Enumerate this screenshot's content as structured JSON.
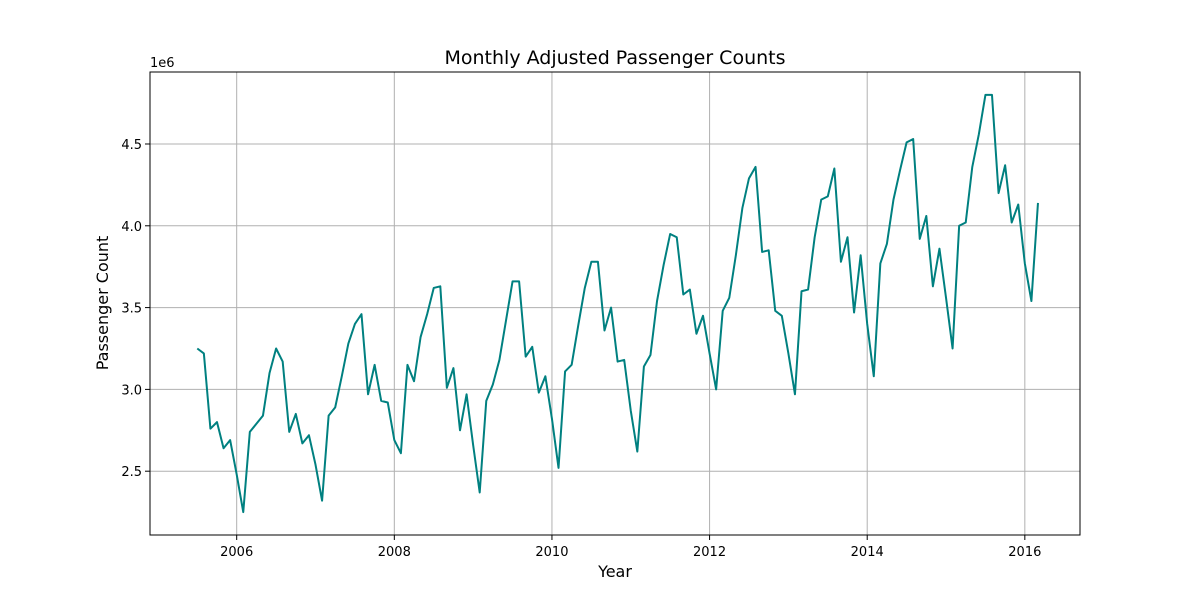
{
  "chart_data": {
    "type": "line",
    "title": "Monthly Adjusted Passenger Counts",
    "xlabel": "Year",
    "ylabel": "Passenger Count",
    "y_offset_label": "1e6",
    "xlim": [
      2004.9,
      2016.7
    ],
    "ylim": [
      2110000,
      4940000
    ],
    "x_ticks": [
      2006,
      2008,
      2010,
      2012,
      2014,
      2016
    ],
    "x_tick_labels": [
      "2006",
      "2008",
      "2010",
      "2012",
      "2014",
      "2016"
    ],
    "y_ticks": [
      2500000,
      3000000,
      3500000,
      4000000,
      4500000
    ],
    "y_tick_labels": [
      "2.5",
      "3.0",
      "3.5",
      "4.0",
      "4.5"
    ],
    "grid": true,
    "line_color": "#008080",
    "series": [
      {
        "x": [
          "2005-07",
          "2005-08",
          "2005-09",
          "2005-10",
          "2005-11",
          "2005-12",
          "2006-01",
          "2006-02",
          "2006-03",
          "2006-04",
          "2006-05",
          "2006-06",
          "2006-07",
          "2006-08",
          "2006-09",
          "2006-10",
          "2006-11",
          "2006-12",
          "2007-01",
          "2007-02",
          "2007-03",
          "2007-04",
          "2007-05",
          "2007-06",
          "2007-07",
          "2007-08",
          "2007-09",
          "2007-10",
          "2007-11",
          "2007-12",
          "2008-01",
          "2008-02",
          "2008-03",
          "2008-04",
          "2008-05",
          "2008-06",
          "2008-07",
          "2008-08",
          "2008-09",
          "2008-10",
          "2008-11",
          "2008-12",
          "2009-01",
          "2009-02",
          "2009-03",
          "2009-04",
          "2009-05",
          "2009-06",
          "2009-07",
          "2009-08",
          "2009-09",
          "2009-10",
          "2009-11",
          "2009-12",
          "2010-01",
          "2010-02",
          "2010-03",
          "2010-04",
          "2010-05",
          "2010-06",
          "2010-07",
          "2010-08",
          "2010-09",
          "2010-10",
          "2010-11",
          "2010-12",
          "2011-01",
          "2011-02",
          "2011-03",
          "2011-04",
          "2011-05",
          "2011-06",
          "2011-07",
          "2011-08",
          "2011-09",
          "2011-10",
          "2011-11",
          "2011-12",
          "2012-01",
          "2012-02",
          "2012-03",
          "2012-04",
          "2012-05",
          "2012-06",
          "2012-07",
          "2012-08",
          "2012-09",
          "2012-10",
          "2012-11",
          "2012-12",
          "2013-01",
          "2013-02",
          "2013-03",
          "2013-04",
          "2013-05",
          "2013-06",
          "2013-07",
          "2013-08",
          "2013-09",
          "2013-10",
          "2013-11",
          "2013-12",
          "2014-01",
          "2014-02",
          "2014-03",
          "2014-04",
          "2014-05",
          "2014-06",
          "2014-07",
          "2014-08",
          "2014-09",
          "2014-10",
          "2014-11",
          "2014-12",
          "2015-01",
          "2015-02",
          "2015-03",
          "2015-04",
          "2015-05",
          "2015-06",
          "2015-07",
          "2015-08",
          "2015-09",
          "2015-10",
          "2015-11",
          "2015-12",
          "2016-01",
          "2016-02",
          "2016-03"
        ],
        "values": [
          3250000,
          3220000,
          2760000,
          2800000,
          2640000,
          2690000,
          2480000,
          2250000,
          2740000,
          2790000,
          2840000,
          3100000,
          3250000,
          3170000,
          2740000,
          2850000,
          2670000,
          2720000,
          2540000,
          2320000,
          2840000,
          2890000,
          3080000,
          3280000,
          3400000,
          3460000,
          2970000,
          3150000,
          2930000,
          2920000,
          2690000,
          2610000,
          3150000,
          3050000,
          3320000,
          3460000,
          3620000,
          3630000,
          3010000,
          3130000,
          2750000,
          2970000,
          2660000,
          2370000,
          2930000,
          3030000,
          3180000,
          3420000,
          3660000,
          3660000,
          3200000,
          3260000,
          2980000,
          3080000,
          2820000,
          2520000,
          3110000,
          3150000,
          3390000,
          3620000,
          3780000,
          3780000,
          3360000,
          3500000,
          3170000,
          3180000,
          2870000,
          2620000,
          3140000,
          3210000,
          3540000,
          3760000,
          3950000,
          3930000,
          3580000,
          3610000,
          3340000,
          3450000,
          3220000,
          3000000,
          3480000,
          3560000,
          3820000,
          4110000,
          4290000,
          4360000,
          3840000,
          3850000,
          3480000,
          3450000,
          3220000,
          2970000,
          3600000,
          3610000,
          3930000,
          4160000,
          4180000,
          4350000,
          3780000,
          3930000,
          3470000,
          3820000,
          3400000,
          3080000,
          3770000,
          3890000,
          4160000,
          4340000,
          4510000,
          4530000,
          3920000,
          4060000,
          3630000,
          3860000,
          3560000,
          3250000,
          4000000,
          4020000,
          4360000,
          4560000,
          4800000,
          4800000,
          4200000,
          4370000,
          4020000,
          4130000,
          3770000,
          3540000,
          4140000
        ]
      }
    ]
  }
}
